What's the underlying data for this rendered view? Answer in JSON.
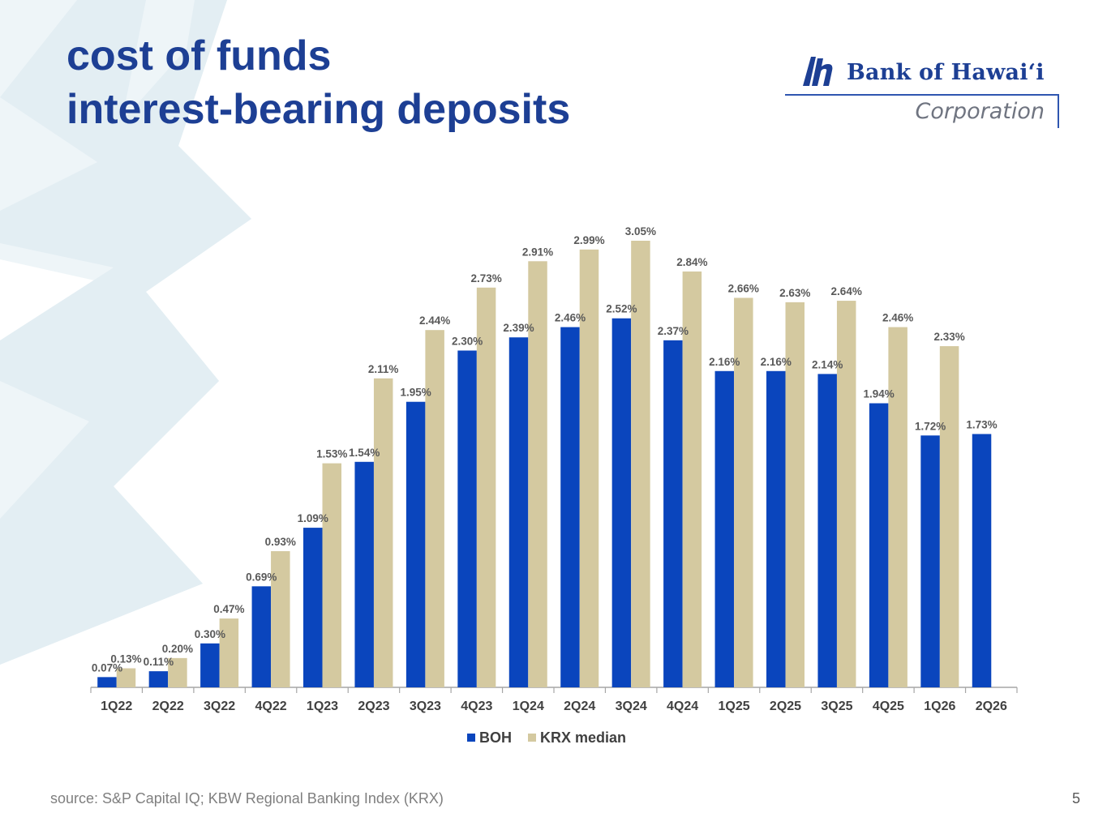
{
  "title_lines": [
    "cost of funds",
    "interest-bearing deposits"
  ],
  "logo": {
    "name": "Bank of Hawaiʻi",
    "subtitle": "Corporation"
  },
  "source_note": "source: S&P Capital IQ; KBW Regional Banking Index (KRX)",
  "page_number": "5",
  "colors": {
    "title": "#1d3f94",
    "boh": "#0a45bd",
    "krx": "#d4c9a0",
    "background_star": "#eef5f8"
  },
  "chart_data": {
    "type": "bar",
    "categories": [
      "1Q22",
      "2Q22",
      "3Q22",
      "4Q22",
      "1Q23",
      "2Q23",
      "3Q23",
      "4Q23",
      "1Q24",
      "2Q24",
      "3Q24",
      "4Q24",
      "1Q25",
      "2Q25",
      "3Q25",
      "4Q25",
      "1Q26",
      "2Q26"
    ],
    "series": [
      {
        "name": "BOH",
        "color": "#0a45bd",
        "values": [
          0.07,
          0.11,
          0.3,
          0.69,
          1.09,
          1.54,
          1.95,
          2.3,
          2.39,
          2.46,
          2.52,
          2.37,
          2.16,
          2.16,
          2.14,
          1.94,
          1.72,
          1.73
        ],
        "labels": [
          "0.07%",
          "0.11%",
          "0.30%",
          "0.69%",
          "1.09%",
          "1.54%",
          "1.95%",
          "2.30%",
          "2.39%",
          "2.46%",
          "2.52%",
          "2.37%",
          "2.16%",
          "2.16%",
          "2.14%",
          "1.94%",
          "1.72%",
          "1.73%"
        ]
      },
      {
        "name": "KRX median",
        "color": "#d4c9a0",
        "values": [
          0.13,
          0.2,
          0.47,
          0.93,
          1.53,
          2.11,
          2.44,
          2.73,
          2.91,
          2.99,
          3.05,
          2.84,
          2.66,
          2.63,
          2.64,
          2.46,
          2.33,
          null
        ],
        "labels": [
          "0.13%",
          "0.20%",
          "0.47%",
          "0.93%",
          "1.53%",
          "2.11%",
          "2.44%",
          "2.73%",
          "2.91%",
          "2.99%",
          "3.05%",
          "2.84%",
          "2.66%",
          "2.63%",
          "2.64%",
          "2.46%",
          "2.33%",
          null
        ]
      }
    ],
    "ylim": [
      0,
      3.05
    ],
    "grid": false,
    "legend_position": "bottom-center",
    "xlabel": "",
    "ylabel": ""
  }
}
